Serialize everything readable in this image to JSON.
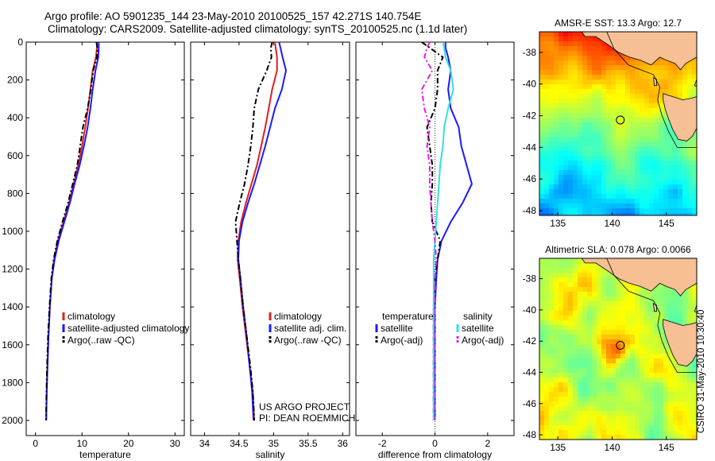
{
  "header": {
    "line1": "Argo profile: AO 5901235_144 23-May-2010 20100525_157 42.271S 140.754E",
    "line2": "Climatology: CARS2009. Satellite-adjusted climatology: synTS_20100525.nc (1.1d later)"
  },
  "credit": {
    "line1": "US ARGO PROJECT",
    "line2": "PI: DEAN ROEMMICH"
  },
  "stamp": "CSIRO 31-May-2010 10:30:40",
  "colors": {
    "climatology": "#e02020",
    "satellite": "#1a1aff",
    "argo": "#000000",
    "satellite_diff": "#33e0e0",
    "argo_diff": "#e020e0",
    "land": "#f6bf94"
  },
  "chart_data": [
    {
      "type": "line",
      "id": "temperature",
      "xlabel": "temperature",
      "ylabel": "",
      "xlim": [
        -2,
        32
      ],
      "ylim": [
        0,
        2080
      ],
      "y_reversed": true,
      "xticks": [
        0,
        10,
        20,
        30
      ],
      "yticks": [
        0,
        200,
        400,
        600,
        800,
        1000,
        1200,
        1400,
        1600,
        1800,
        2000
      ],
      "legend": [
        "climatology",
        "satellite-adjusted climatology",
        "Argo(..raw -QC)"
      ],
      "series": [
        {
          "name": "climatology",
          "color": "#e02020",
          "dash": "solid",
          "x": [
            13.2,
            13.2,
            13.0,
            12.3,
            11.8,
            11.3,
            10.7,
            10.0,
            9.2,
            8.2,
            7.2,
            6.0,
            4.8,
            4.0,
            3.5,
            3.1,
            2.8,
            2.6,
            2.4,
            2.3
          ],
          "y": [
            0,
            30,
            80,
            150,
            250,
            350,
            450,
            550,
            650,
            750,
            850,
            950,
            1050,
            1150,
            1250,
            1400,
            1550,
            1700,
            1850,
            2000
          ]
        },
        {
          "name": "satellite-adjusted climatology",
          "color": "#1a1aff",
          "dash": "solid",
          "x": [
            13.6,
            13.6,
            13.5,
            12.9,
            12.3,
            11.8,
            11.2,
            10.4,
            9.5,
            8.4,
            7.4,
            6.2,
            5.0,
            4.1,
            3.5,
            3.1,
            2.8,
            2.6,
            2.4,
            2.3
          ],
          "y": [
            0,
            30,
            80,
            150,
            250,
            350,
            450,
            550,
            650,
            750,
            850,
            950,
            1050,
            1150,
            1250,
            1400,
            1550,
            1700,
            1850,
            2000
          ]
        },
        {
          "name": "Argo(..raw -QC)",
          "color": "#000000",
          "dash": "dashdot",
          "x": [
            13.1,
            13.3,
            13.2,
            12.4,
            11.9,
            11.2,
            10.2,
            9.6,
            9.0,
            8.0,
            7.0,
            5.8,
            4.7,
            3.9,
            3.4,
            3.0,
            2.7,
            2.5,
            2.35,
            2.25
          ],
          "y": [
            0,
            30,
            80,
            150,
            250,
            350,
            450,
            550,
            650,
            750,
            850,
            950,
            1050,
            1150,
            1250,
            1400,
            1550,
            1700,
            1850,
            2000
          ]
        }
      ]
    },
    {
      "type": "line",
      "id": "salinity",
      "xlabel": "salinity",
      "ylabel": "",
      "xlim": [
        33.8,
        36.1
      ],
      "ylim": [
        0,
        2080
      ],
      "y_reversed": true,
      "xticks": [
        34,
        34.5,
        35,
        35.5,
        36
      ],
      "legend": [
        "climatology",
        "satellite adj. clim.",
        "Argo(..raw -QC)"
      ],
      "series": [
        {
          "name": "climatology",
          "color": "#e02020",
          "dash": "solid",
          "x": [
            35.02,
            35.03,
            35.05,
            35.05,
            34.98,
            34.93,
            34.88,
            34.82,
            34.76,
            34.68,
            34.6,
            34.53,
            34.49,
            34.48,
            34.51,
            34.55,
            34.6,
            34.65,
            34.7,
            34.72
          ],
          "y": [
            0,
            30,
            80,
            150,
            250,
            350,
            450,
            550,
            650,
            750,
            850,
            950,
            1050,
            1150,
            1250,
            1400,
            1550,
            1700,
            1850,
            2000
          ]
        },
        {
          "name": "satellite adj. clim.",
          "color": "#1a1aff",
          "dash": "solid",
          "x": [
            35.08,
            35.1,
            35.13,
            35.18,
            35.12,
            35.02,
            34.95,
            34.88,
            34.8,
            34.72,
            34.63,
            34.55,
            34.5,
            34.49,
            34.52,
            34.56,
            34.61,
            34.65,
            34.69,
            34.71
          ],
          "y": [
            0,
            30,
            80,
            150,
            250,
            350,
            450,
            550,
            650,
            750,
            850,
            950,
            1050,
            1150,
            1250,
            1400,
            1550,
            1700,
            1850,
            2000
          ]
        },
        {
          "name": "Argo(..raw -QC)",
          "color": "#000000",
          "dash": "dashdot",
          "x": [
            34.98,
            34.96,
            34.97,
            34.9,
            34.78,
            34.72,
            34.7,
            34.67,
            34.63,
            34.58,
            34.51,
            34.45,
            34.47,
            34.49,
            34.52,
            34.56,
            34.61,
            34.66,
            34.7,
            34.72
          ],
          "y": [
            0,
            30,
            80,
            150,
            250,
            350,
            450,
            550,
            650,
            750,
            850,
            950,
            1050,
            1150,
            1250,
            1400,
            1550,
            1700,
            1850,
            2000
          ]
        }
      ]
    },
    {
      "type": "line",
      "id": "difference",
      "xlabel": "difference from climatology",
      "ylabel": "",
      "xlim": [
        -3,
        3
      ],
      "ylim": [
        0,
        2080
      ],
      "y_reversed": true,
      "xticks": [
        -2,
        0,
        2
      ],
      "legend_headers": [
        "temperature",
        "salinity"
      ],
      "legend": [
        "satellite",
        "Argo(-adj)",
        "satellite",
        "Argo(-adj)"
      ],
      "series": [
        {
          "name": "satellite",
          "group": "temperature",
          "color": "#1a1aff",
          "dash": "solid",
          "x": [
            0.4,
            0.4,
            0.5,
            0.6,
            0.5,
            0.6,
            0.9,
            1.0,
            1.2,
            1.4,
            1.05,
            0.6,
            0.25,
            0.1,
            0.05,
            0.0,
            0.0,
            0.0,
            0.0,
            0.0
          ],
          "y": [
            0,
            30,
            80,
            150,
            250,
            350,
            450,
            550,
            650,
            750,
            850,
            950,
            1050,
            1150,
            1250,
            1400,
            1550,
            1700,
            1850,
            2000
          ]
        },
        {
          "name": "Argo(-adj)",
          "group": "temperature",
          "color": "#000000",
          "dash": "dashdot",
          "x": [
            -0.5,
            -0.2,
            0.3,
            0.1,
            0.1,
            0.0,
            -0.3,
            -0.2,
            -0.1,
            -0.1,
            -0.15,
            -0.1,
            0.2,
            0.1,
            0.0,
            -0.05,
            -0.05,
            -0.05,
            -0.05,
            -0.05
          ],
          "y": [
            0,
            30,
            80,
            150,
            250,
            350,
            450,
            550,
            650,
            750,
            850,
            950,
            1050,
            1150,
            1250,
            1400,
            1550,
            1700,
            1850,
            2000
          ]
        },
        {
          "name": "satellite",
          "group": "salinity",
          "color": "#33e0e0",
          "dash": "solid",
          "x": [
            0.3,
            0.35,
            0.4,
            0.6,
            0.7,
            0.5,
            0.35,
            0.3,
            0.2,
            0.15,
            0.1,
            0.05,
            0.0,
            -0.05,
            -0.05,
            -0.05,
            -0.05,
            -0.05,
            -0.05,
            -0.05
          ],
          "y": [
            0,
            30,
            80,
            150,
            250,
            350,
            450,
            550,
            650,
            750,
            850,
            950,
            1050,
            1150,
            1250,
            1400,
            1550,
            1700,
            1850,
            2000
          ]
        },
        {
          "name": "Argo(-adj)",
          "group": "salinity",
          "color": "#e020e0",
          "dash": "dashdot",
          "x": [
            -0.2,
            -0.3,
            -0.4,
            -0.1,
            -0.5,
            -0.4,
            -0.2,
            -0.3,
            -0.2,
            -0.2,
            -0.15,
            -0.1,
            0.0,
            0.05,
            0.0,
            0.0,
            0.0,
            0.0,
            0.0,
            0.0
          ],
          "y": [
            0,
            30,
            80,
            150,
            250,
            350,
            450,
            550,
            650,
            750,
            850,
            950,
            1050,
            1150,
            1250,
            1400,
            1550,
            1700,
            1850,
            2000
          ]
        }
      ]
    },
    {
      "type": "heatmap",
      "id": "sst_map",
      "title": "AMSR-E SST: 13.3 Argo: 12.7",
      "xlim": [
        133.3,
        147.8
      ],
      "ylim": [
        -48.3,
        -36.7
      ],
      "xticks": [
        135,
        140,
        145
      ],
      "yticks": [
        -38,
        -40,
        -42,
        -44,
        -46,
        -48
      ],
      "argo_location": {
        "lon": 140.754,
        "lat": -42.271
      },
      "colormap": "jet",
      "field": "sst"
    },
    {
      "type": "heatmap",
      "id": "sla_map",
      "title": "Altimetric SLA: 0.078 Argo: 0.0066",
      "xlim": [
        133.3,
        147.8
      ],
      "ylim": [
        -48.3,
        -36.7
      ],
      "xticks": [
        135,
        140,
        145
      ],
      "yticks": [
        -38,
        -40,
        -42,
        -44,
        -46,
        -48
      ],
      "argo_location": {
        "lon": 140.754,
        "lat": -42.271
      },
      "colormap": "jet",
      "field": "sla"
    }
  ]
}
